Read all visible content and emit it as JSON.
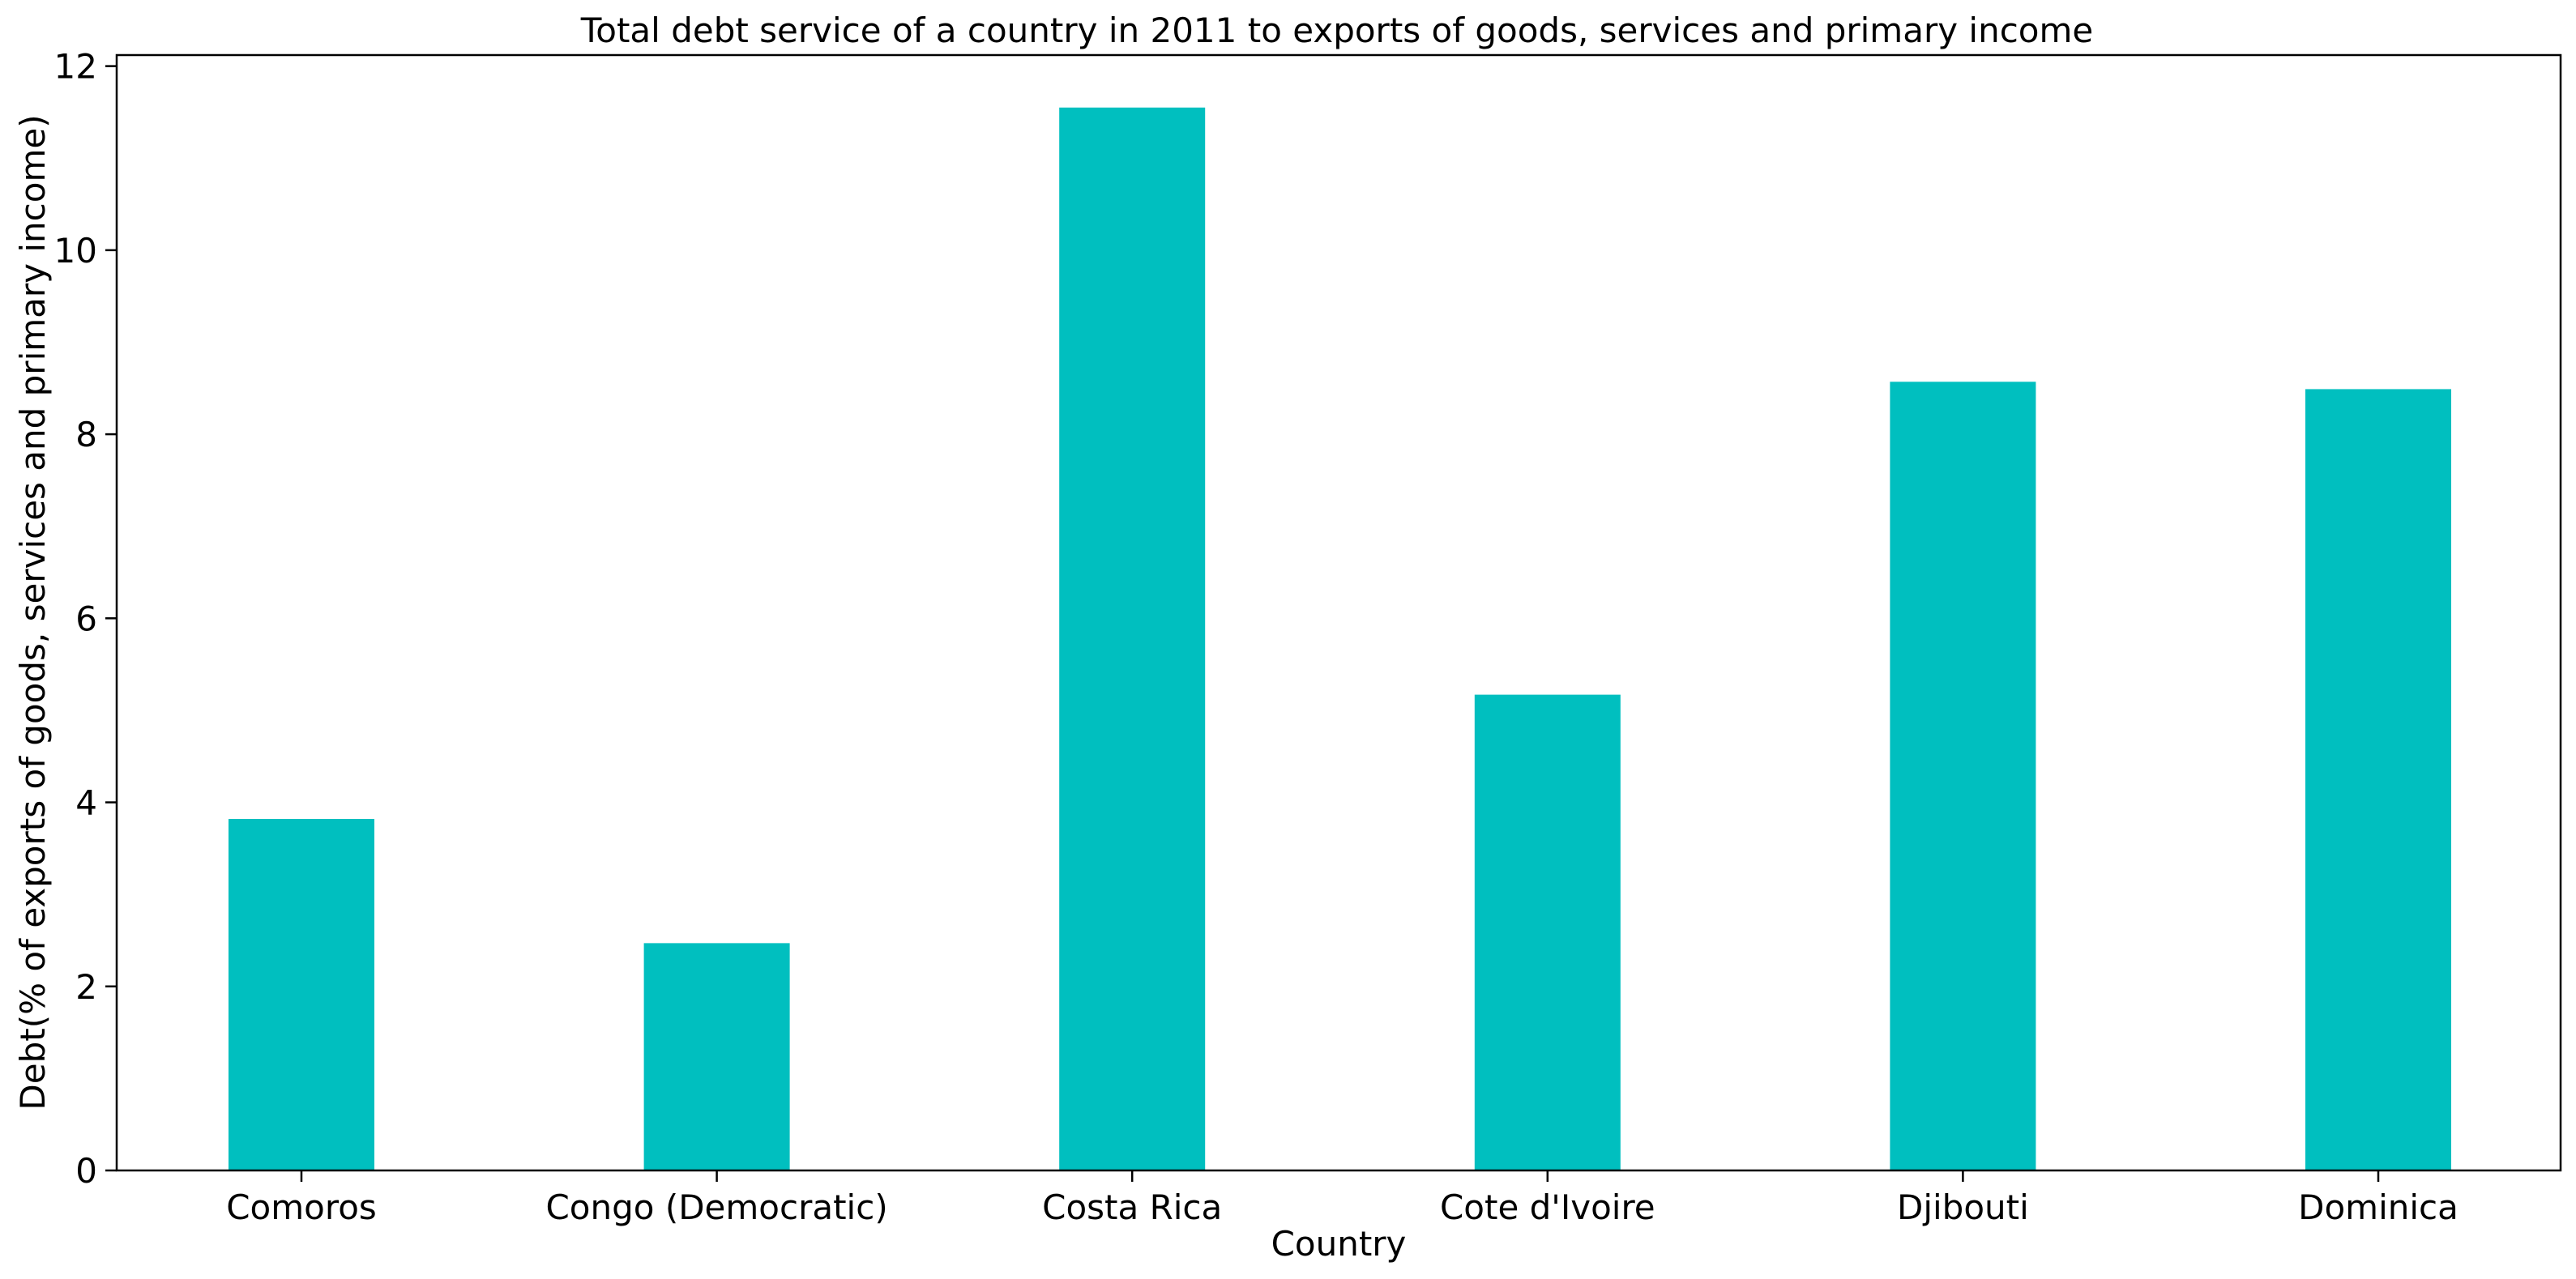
{
  "chart_data": {
    "type": "bar",
    "title": "Total debt service of a country in 2011 to exports of goods, services and primary income",
    "xlabel": "Country",
    "ylabel": "Debt(% of exports of goods, services and primary income)",
    "categories": [
      "Comoros",
      "Congo (Democratic)",
      "Costa Rica",
      "Cote d'Ivoire",
      "Djibouti",
      "Dominica"
    ],
    "values": [
      3.82,
      2.47,
      11.55,
      5.17,
      8.57,
      8.49
    ],
    "ylim": [
      0,
      12.12
    ],
    "yticks": [
      0,
      2,
      4,
      6,
      8,
      10,
      12
    ],
    "bar_color": "#00bfbf",
    "grid": false,
    "legend": "none"
  }
}
